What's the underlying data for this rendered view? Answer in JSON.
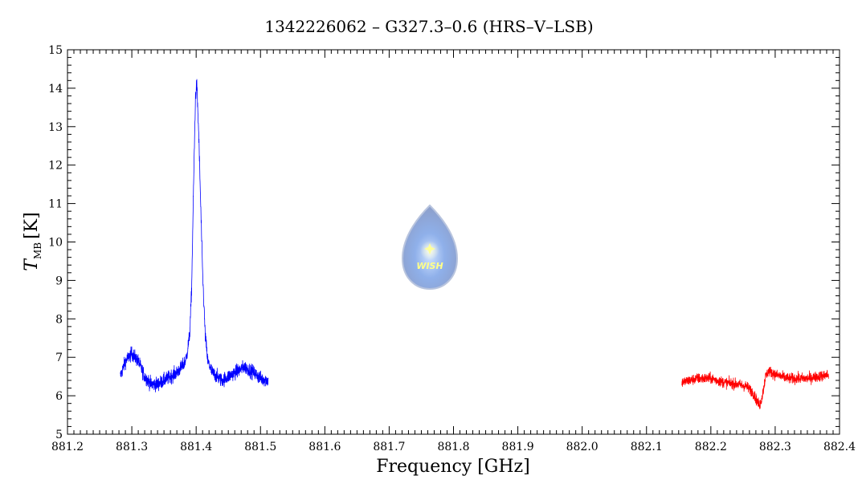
{
  "chart_data": {
    "type": "line",
    "title": "1342226062 – G327.3–0.6 (HRS–V–LSB)",
    "xlabel": "Frequency [GHz]",
    "ylabel_main": "T",
    "ylabel_sub": "MB",
    "ylabel_unit": "[K]",
    "xlim": [
      881.2,
      882.4
    ],
    "ylim": [
      5,
      15
    ],
    "x_ticks": [
      "881.2",
      "881.3",
      "881.4",
      "881.5",
      "881.6",
      "881.7",
      "881.8",
      "881.9",
      "882.0",
      "882.1",
      "882.2",
      "882.3",
      "882.4"
    ],
    "y_ticks": [
      "5",
      "6",
      "7",
      "8",
      "9",
      "10",
      "11",
      "12",
      "13",
      "14",
      "15"
    ],
    "grid": false,
    "logo_text": "WISH",
    "series": [
      {
        "color": "#0000ff",
        "x_range": [
          881.282,
          881.512
        ],
        "profile": [
          [
            881.282,
            6.5
          ],
          [
            881.29,
            6.9
          ],
          [
            881.3,
            7.1
          ],
          [
            881.31,
            6.9
          ],
          [
            881.32,
            6.5
          ],
          [
            881.33,
            6.3
          ],
          [
            881.34,
            6.3
          ],
          [
            881.35,
            6.4
          ],
          [
            881.36,
            6.5
          ],
          [
            881.37,
            6.6
          ],
          [
            881.38,
            6.8
          ],
          [
            881.385,
            7.0
          ],
          [
            881.39,
            7.6
          ],
          [
            881.393,
            8.8
          ],
          [
            881.396,
            11.5
          ],
          [
            881.399,
            13.8
          ],
          [
            881.401,
            14.1
          ],
          [
            881.404,
            12.8
          ],
          [
            881.407,
            11.0
          ],
          [
            881.41,
            9.2
          ],
          [
            881.414,
            7.6
          ],
          [
            881.418,
            6.9
          ],
          [
            881.425,
            6.6
          ],
          [
            881.44,
            6.4
          ],
          [
            881.46,
            6.6
          ],
          [
            881.475,
            6.75
          ],
          [
            881.49,
            6.6
          ],
          [
            881.5,
            6.45
          ],
          [
            881.512,
            6.4
          ]
        ],
        "noise": 0.13
      },
      {
        "color": "#ff0000",
        "x_range": [
          882.155,
          882.383
        ],
        "profile": [
          [
            882.155,
            6.35
          ],
          [
            882.18,
            6.45
          ],
          [
            882.2,
            6.45
          ],
          [
            882.22,
            6.35
          ],
          [
            882.24,
            6.3
          ],
          [
            882.255,
            6.25
          ],
          [
            882.265,
            6.1
          ],
          [
            882.272,
            5.85
          ],
          [
            882.276,
            5.75
          ],
          [
            882.28,
            6.0
          ],
          [
            882.285,
            6.5
          ],
          [
            882.29,
            6.65
          ],
          [
            882.3,
            6.55
          ],
          [
            882.32,
            6.45
          ],
          [
            882.35,
            6.45
          ],
          [
            882.383,
            6.55
          ]
        ],
        "noise": 0.1
      }
    ]
  }
}
